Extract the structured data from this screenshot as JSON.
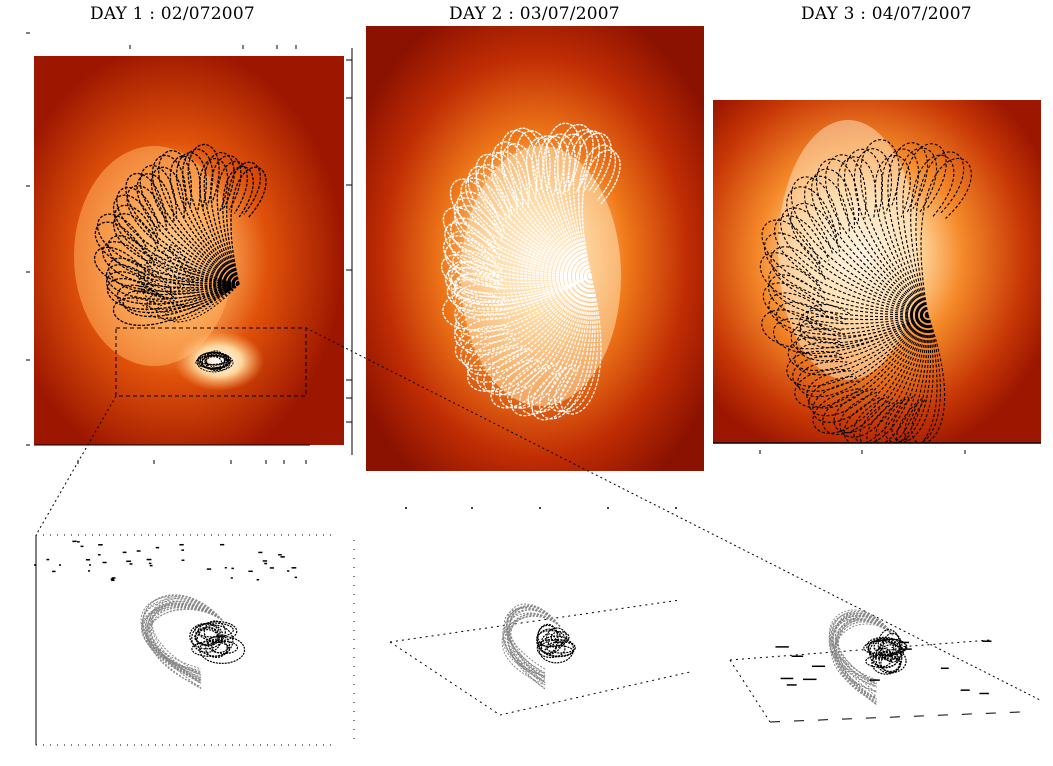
{
  "titles": {
    "day1": "DAY 1 : 02/072007",
    "day2": "DAY 2 : 03/07/2007",
    "day3": "DAY 3 : 04/07/2007"
  },
  "colors": {
    "background": "#ffffff",
    "map_dark": "#9c1600",
    "map_mid": "#e0520a",
    "map_bright": "#ffb060",
    "map_core": "#ffffff",
    "field_lines_day1": "#000000",
    "field_lines_day2": "#ffffff",
    "field_lines_day3": "#000000",
    "zoom_lines_gray": "#888888",
    "zoom_lines_black": "#000000"
  }
}
